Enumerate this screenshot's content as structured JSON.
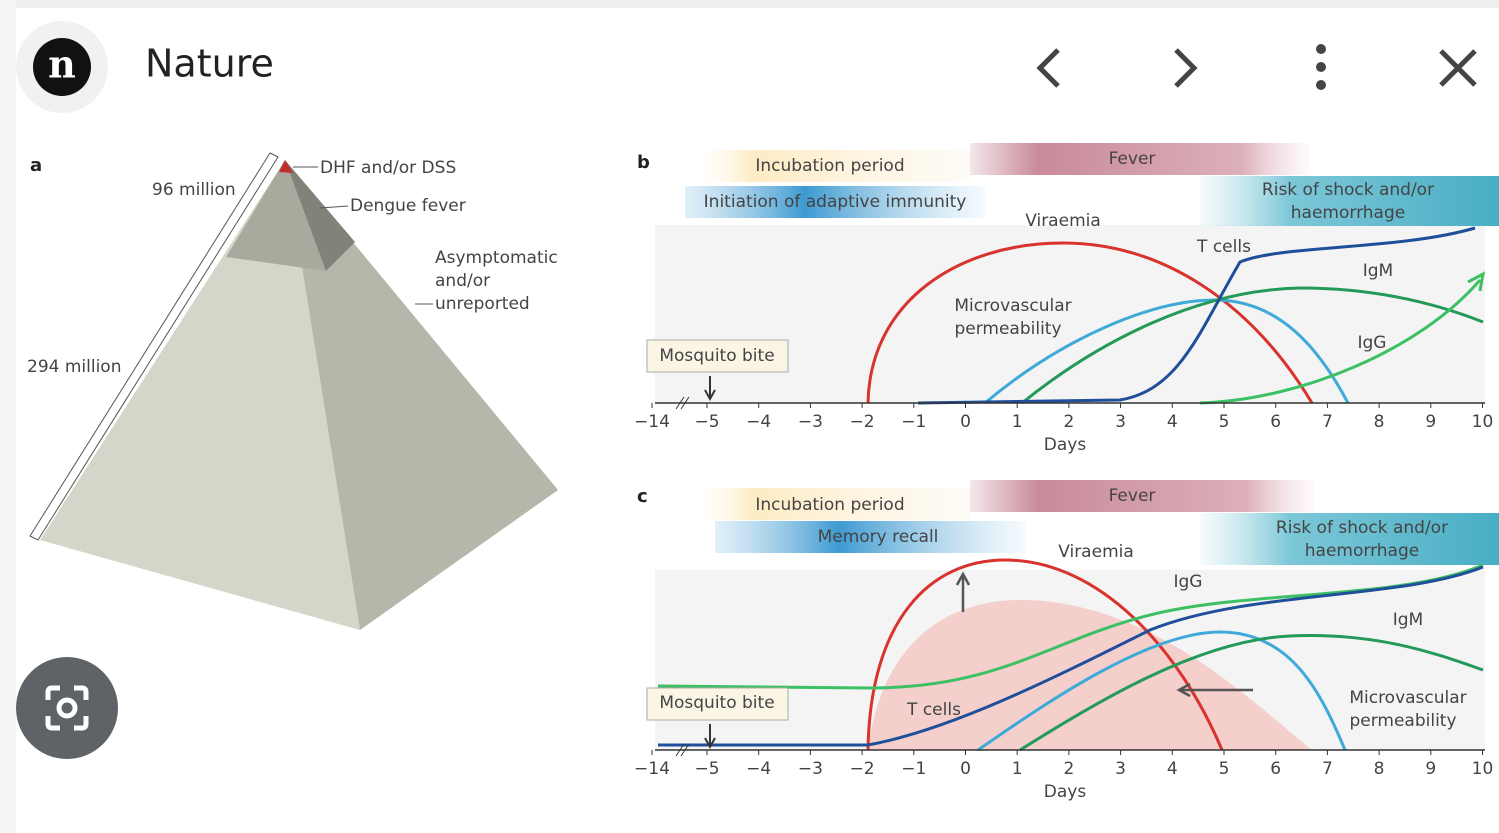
{
  "header": {
    "logo": "n",
    "title": "Nature"
  },
  "panel_a": {
    "label": "a",
    "tip": "DHF and/or DSS",
    "dengue": "Dengue fever",
    "base": [
      "Asymptomatic",
      "and/or",
      "unreported"
    ],
    "upper": "96 million",
    "total": "294 million"
  },
  "axis": {
    "ticks": [
      "−14",
      "−5",
      "−4",
      "−3",
      "−2",
      "−1",
      "0",
      "1",
      "2",
      "3",
      "4",
      "5",
      "6",
      "7",
      "8",
      "9",
      "10"
    ],
    "title": "Days"
  },
  "panel_b": {
    "label": "b",
    "incubation": "Incubation period",
    "fever": "Fever",
    "immunity": "Initiation of adaptive immunity",
    "risk": [
      "Risk of shock and/or",
      "haemorrhage"
    ],
    "viraemia": "Viraemia",
    "tcells": "T cells",
    "igm": "IgM",
    "igg": "IgG",
    "micro": [
      "Microvascular",
      "permeability"
    ],
    "bite": "Mosquito bite"
  },
  "panel_c": {
    "label": "c",
    "incubation": "Incubation period",
    "fever": "Fever",
    "memory": "Memory recall",
    "risk": [
      "Risk of shock and/or",
      "haemorrhage"
    ],
    "viraemia": "Viraemia",
    "igg": "IgG",
    "igm": "IgM",
    "tcells": "T cells",
    "micro": [
      "Microvascular",
      "permeability"
    ],
    "bite": "Mosquito bite"
  }
}
